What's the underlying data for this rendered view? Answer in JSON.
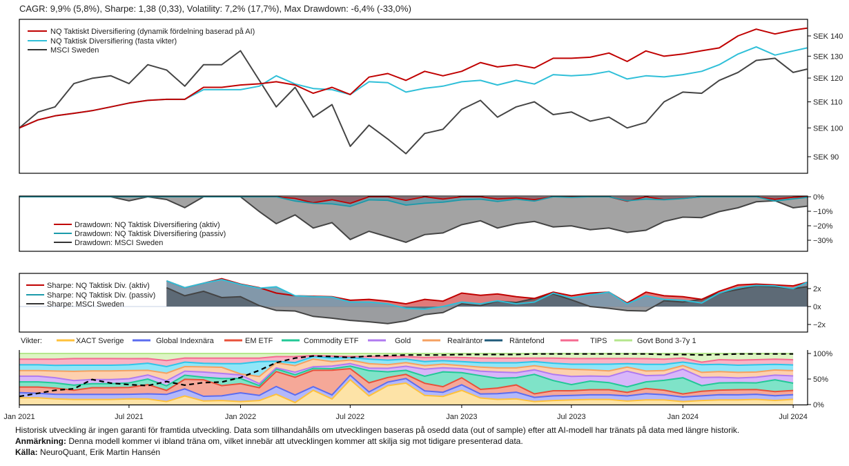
{
  "stats_line": "CAGR: 9,9% (5,8%), Sharpe: 1,38 (0,33), Volatility: 7,2% (17,7%), Max Drawdown: -6,4% (-33,0%)",
  "colors": {
    "aktiv": "#c00000",
    "passiv": "#2fbfd8",
    "msci": "#444444"
  },
  "chart_data": [
    {
      "type": "line",
      "panel": "performance",
      "yscale": "log",
      "ylim": [
        85,
        147
      ],
      "y_ticks": [
        {
          "value": 90,
          "label": "SEK 90"
        },
        {
          "value": 100,
          "label": "SEK 100"
        },
        {
          "value": 110,
          "label": "SEK 110"
        },
        {
          "value": 120,
          "label": "SEK 120"
        },
        {
          "value": 130,
          "label": "SEK 130"
        },
        {
          "value": 140,
          "label": "SEK 140"
        }
      ],
      "legend_position": "top-left",
      "x": [
        "2021-01-01",
        "2021-02-01",
        "2021-03-01",
        "2021-04-01",
        "2021-05-01",
        "2021-06-01",
        "2021-07-01",
        "2021-08-01",
        "2021-09-01",
        "2021-10-01",
        "2021-11-01",
        "2021-12-01",
        "2022-01-01",
        "2022-02-01",
        "2022-03-01",
        "2022-04-01",
        "2022-05-01",
        "2022-06-01",
        "2022-07-01",
        "2022-08-01",
        "2022-09-01",
        "2022-10-01",
        "2022-11-01",
        "2022-12-01",
        "2023-01-01",
        "2023-02-01",
        "2023-03-01",
        "2023-04-01",
        "2023-05-01",
        "2023-06-01",
        "2023-07-01",
        "2023-08-01",
        "2023-09-01",
        "2023-10-01",
        "2023-11-01",
        "2023-12-01",
        "2024-01-01",
        "2024-02-01",
        "2024-03-01",
        "2024-04-01",
        "2024-05-01",
        "2024-06-01",
        "2024-07-01",
        "2024-07-24"
      ],
      "series": [
        {
          "key": "aktiv",
          "name": "NQ Taktiskt Diversifiering (dynamik fördelning baserad på AI)",
          "values": [
            100,
            103,
            104.5,
            105.5,
            106.5,
            108,
            109.5,
            110.6,
            111,
            111,
            116,
            116,
            117,
            117.5,
            118.4,
            117,
            113.5,
            116,
            113,
            120.4,
            122,
            119,
            123,
            121,
            123,
            127,
            125,
            126,
            124.5,
            129,
            129,
            129.5,
            131.5,
            127.5,
            132.5,
            130,
            131,
            132.6,
            134,
            140,
            143.5,
            141,
            143,
            144
          ]
        },
        {
          "key": "passiv",
          "name": "NQ Taktisk Diversifiering (fasta vikter)",
          "values": [
            100,
            103,
            104.5,
            105.5,
            106.5,
            108,
            109.5,
            110.6,
            111,
            111,
            115,
            115,
            115,
            116.5,
            121,
            117.4,
            115.5,
            115,
            113,
            118.4,
            118,
            114,
            115.6,
            116.5,
            118.4,
            119,
            117,
            119,
            117.4,
            121.5,
            121,
            121.5,
            123,
            119.6,
            121,
            120.5,
            121.5,
            123,
            126,
            131,
            134.5,
            130.5,
            132.5,
            134
          ]
        },
        {
          "key": "msci",
          "name": "MSCI Sweden",
          "values": [
            100,
            106,
            108,
            117.6,
            119.9,
            121,
            117.6,
            126,
            123.6,
            116.5,
            126,
            126,
            132.6,
            119,
            108,
            116,
            104,
            108.9,
            93.5,
            101,
            96,
            91,
            98,
            99.5,
            107,
            110.6,
            104,
            108,
            110,
            105,
            106,
            102.5,
            104,
            100,
            102,
            110,
            114,
            113.5,
            119,
            122.5,
            128,
            129,
            122.5,
            124
          ]
        }
      ]
    },
    {
      "type": "area",
      "panel": "drawdown",
      "ylim": [
        -37,
        0
      ],
      "y_ticks": [
        {
          "value": 0,
          "label": "0%"
        },
        {
          "value": -10,
          "label": "−10%"
        },
        {
          "value": -20,
          "label": "−20%"
        },
        {
          "value": -30,
          "label": "−30%"
        }
      ],
      "legend_position": "middle-left",
      "series": [
        {
          "key": "aktiv",
          "name": "Drawdown: NQ Taktisk Diversifiering (aktiv)"
        },
        {
          "key": "passiv",
          "name": "Drawdown: NQ Taktisk Diversifiering (passiv)"
        },
        {
          "key": "msci",
          "name": "Drawdown: MSCI Sweden"
        }
      ]
    },
    {
      "type": "area",
      "panel": "sharpe",
      "ylim": [
        -2.8,
        3.7
      ],
      "y_ticks": [
        {
          "value": 2,
          "label": "2x"
        },
        {
          "value": 0,
          "label": "0x"
        },
        {
          "value": -2,
          "label": "−2x"
        }
      ],
      "legend_position": "top-left",
      "series": [
        {
          "key": "aktiv",
          "name": "Sharpe: NQ Taktisk Div. (aktiv)",
          "values": [
            null,
            null,
            null,
            null,
            null,
            null,
            null,
            null,
            2.86,
            2.1,
            2.6,
            3.1,
            2.5,
            2.1,
            1.5,
            1.2,
            1.15,
            1.1,
            0.7,
            0.8,
            0.6,
            0.3,
            0.8,
            0.6,
            1.5,
            1.25,
            1.4,
            1.1,
            0.9,
            1.6,
            1.2,
            1.5,
            1.6,
            0.4,
            1.6,
            1.2,
            1.1,
            0.8,
            1.7,
            2.4,
            2.5,
            2.4,
            2.3,
            2.7
          ]
        },
        {
          "key": "passiv",
          "name": "Sharpe: NQ Taktisk Div. (passiv)",
          "values": [
            null,
            null,
            null,
            null,
            null,
            null,
            null,
            null,
            2.86,
            2.1,
            2.6,
            3.0,
            2.45,
            2.05,
            2.2,
            1.2,
            1.1,
            1.05,
            0.5,
            0.5,
            0.3,
            -0.2,
            -0.3,
            0.0,
            0.5,
            0.3,
            0.65,
            0.3,
            0.5,
            1.5,
            0.96,
            1.3,
            1.6,
            0.3,
            1.2,
            0.8,
            0.7,
            0.4,
            1.5,
            2.1,
            2.35,
            2.3,
            2.0,
            2.7
          ]
        },
        {
          "key": "msci",
          "name": "Sharpe: MSCI Sweden",
          "values": [
            null,
            null,
            null,
            null,
            null,
            null,
            null,
            null,
            2.1,
            1.2,
            1.7,
            1.0,
            1.1,
            0.1,
            -0.43,
            -0.5,
            -1.1,
            -1.3,
            -1.55,
            -1.7,
            -1.9,
            -1.6,
            -0.9,
            -0.68,
            0.3,
            0.1,
            0.6,
            0.45,
            0.9,
            1.4,
            0.75,
            0.0,
            -0.2,
            -0.45,
            -0.5,
            0.65,
            0.5,
            0.8,
            1.5,
            1.9,
            2.3,
            2.2,
            2.0,
            2.2
          ]
        }
      ]
    },
    {
      "type": "area",
      "stacked": true,
      "panel": "weights",
      "legend_title": "Vikter:",
      "legend_position": "top",
      "ylim": [
        0,
        100
      ],
      "y_ticks": [
        {
          "value": 0,
          "label": "0%"
        },
        {
          "value": 50,
          "label": "50%"
        },
        {
          "value": 100,
          "label": "100%"
        }
      ],
      "series": [
        {
          "name": "XACT Sverige",
          "line": "#ffc13b",
          "fill": "#fde3a7",
          "values": [
            13,
            13,
            11,
            10,
            10,
            10,
            11,
            11,
            6,
            17,
            7,
            8,
            6,
            8,
            20,
            4,
            28,
            11,
            49,
            17,
            37,
            42,
            18,
            16,
            28,
            13,
            10,
            11,
            6,
            8,
            9,
            10,
            10,
            7,
            9,
            9,
            6,
            8,
            9,
            9,
            10,
            8,
            10
          ]
        },
        {
          "name": "Global Indexnära",
          "line": "#5b6cf0",
          "fill": "#b3b8fa",
          "values": [
            10,
            9,
            9,
            10,
            10,
            10,
            9,
            10,
            14,
            14,
            9,
            9,
            17,
            10,
            15,
            15,
            7,
            8,
            9,
            8,
            7,
            9,
            9,
            8,
            11,
            8,
            11,
            13,
            8,
            9,
            9,
            9,
            9,
            10,
            12,
            10,
            9,
            9,
            10,
            10,
            10,
            9,
            9
          ]
        },
        {
          "name": "EM ETF",
          "line": "#e8503a",
          "fill": "#f5a898",
          "values": [
            11,
            12,
            12,
            8,
            13,
            13,
            13,
            18,
            8,
            19,
            32,
            20,
            18,
            15,
            29,
            35,
            32,
            49,
            13,
            18,
            9,
            8,
            15,
            11,
            14,
            9,
            11,
            14,
            7,
            10,
            9,
            10,
            10,
            7,
            10,
            9,
            6,
            9,
            9,
            10,
            9,
            8,
            8
          ]
        },
        {
          "name": "Commodity ETF",
          "line": "#22c896",
          "fill": "#7fe3c8",
          "values": [
            10,
            10,
            10,
            10,
            8,
            8,
            9,
            11,
            9,
            8,
            5,
            14,
            10,
            4,
            5,
            5,
            4,
            3,
            5,
            24,
            11,
            8,
            14,
            29,
            10,
            27,
            19,
            14,
            38,
            20,
            12,
            17,
            14,
            11,
            13,
            19,
            32,
            11,
            14,
            14,
            13,
            23,
            14
          ]
        },
        {
          "name": "Gold",
          "line": "#b07af0",
          "fill": "#d8b6fa",
          "values": [
            11,
            11,
            10,
            9,
            8,
            8,
            8,
            8,
            10,
            8,
            10,
            10,
            7,
            4,
            2,
            5,
            3,
            5,
            5,
            5,
            7,
            8,
            14,
            8,
            8,
            9,
            12,
            10,
            9,
            12,
            16,
            10,
            12,
            31,
            12,
            10,
            17,
            16,
            11,
            9,
            11,
            9,
            14
          ]
        },
        {
          "name": "Realräntor",
          "line": "#f5a060",
          "fill": "#fdd0ae",
          "values": [
            11,
            11,
            13,
            18,
            17,
            17,
            16,
            9,
            15,
            9,
            10,
            12,
            2,
            14,
            10,
            13,
            15,
            9,
            7,
            9,
            7,
            7,
            7,
            7,
            6,
            8,
            8,
            9,
            8,
            12,
            14,
            12,
            11,
            8,
            9,
            9,
            7,
            10,
            11,
            11,
            10,
            10,
            10
          ]
        },
        {
          "name": "Räntefond",
          "line": "#2ec5e8",
          "legend_line": "#1f5a7a",
          "fill": "#90e6f8",
          "values": [
            11,
            11,
            11,
            12,
            11,
            11,
            11,
            14,
            13,
            9,
            7,
            7,
            20,
            29,
            3,
            6,
            5,
            7,
            5,
            9,
            9,
            7,
            8,
            7,
            8,
            9,
            10,
            10,
            8,
            10,
            10,
            11,
            13,
            7,
            13,
            12,
            7,
            15,
            14,
            14,
            14,
            11,
            11
          ]
        },
        {
          "name": "TIPS",
          "line": "#f56a90",
          "fill": "#f9b3c5",
          "values": [
            11,
            11,
            12,
            13,
            13,
            13,
            12,
            9,
            12,
            8,
            10,
            11,
            11,
            7,
            9,
            12,
            2,
            4,
            2,
            5,
            7,
            5,
            8,
            7,
            8,
            9,
            9,
            9,
            7,
            10,
            11,
            11,
            11,
            10,
            11,
            10,
            8,
            5,
            9,
            10,
            10,
            10,
            10
          ]
        },
        {
          "name": "Govt Bond 3-7y 1",
          "line": "#b5e68c",
          "fill": "#ddf5c4",
          "values": [
            11,
            11,
            11,
            10,
            10,
            10,
            10,
            10,
            14,
            9,
            9,
            9,
            9,
            9,
            6,
            6,
            4,
            5,
            6,
            6,
            6,
            6,
            8,
            7,
            8,
            9,
            9,
            9,
            9,
            9,
            10,
            10,
            10,
            10,
            10,
            11,
            9,
            17,
            12,
            13,
            12,
            11,
            12
          ]
        }
      ],
      "dashed_line": {
        "color": "#000000",
        "values": [
          16,
          22,
          28,
          31,
          49,
          42,
          39,
          37,
          45,
          38,
          43,
          44,
          53,
          67,
          82,
          91,
          95,
          94,
          92,
          95,
          96,
          97,
          97,
          97,
          98,
          98,
          98,
          98,
          99,
          99,
          99,
          99,
          99,
          99,
          99,
          98,
          98,
          97,
          98,
          99,
          99,
          99,
          99
        ]
      }
    }
  ],
  "x_ticks": [
    {
      "label": "Jan 2021",
      "date": "2021-01-01"
    },
    {
      "label": "Jul 2021",
      "date": "2021-07-01"
    },
    {
      "label": "Jan 2022",
      "date": "2022-01-01"
    },
    {
      "label": "Jul 2022",
      "date": "2022-07-01"
    },
    {
      "label": "Jan 2023",
      "date": "2023-01-01"
    },
    {
      "label": "Jul 2023",
      "date": "2023-07-01"
    },
    {
      "label": "Jan 2024",
      "date": "2024-01-01"
    },
    {
      "label": "Jul 2024",
      "date": "2024-07-01"
    }
  ],
  "footer": {
    "disclaimer": "Historisk utveckling är ingen garanti för framtida utveckling. Data som tillhandahålls om utvecklingen baseras på osedd data (out of sample) efter att AI-modell har tränats på data med längre historik.",
    "note_label": "Anmärkning:",
    "note_text": " Denna modell kommer vi ibland träna om, vilket innebär att utvecklingen kommer att skilja sig mot tidigare presenterad data.",
    "source_label": "Källa:",
    "source_text": " NeuroQuant, Erik Martin Hansén"
  }
}
